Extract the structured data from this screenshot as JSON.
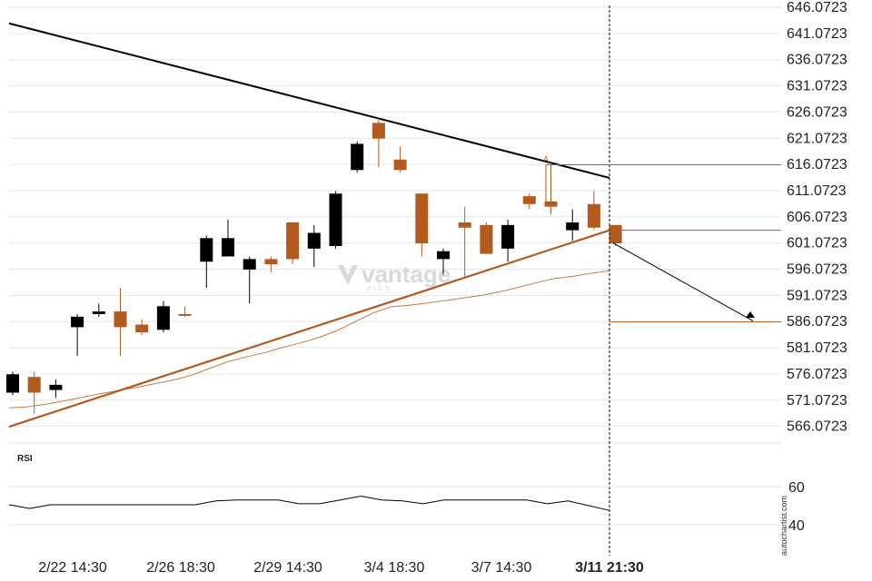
{
  "colors": {
    "bull": "#b35a1f",
    "bear": "#000000",
    "support": "#b35a1f",
    "resistance": "#000000",
    "ma": "#c87a45",
    "grid": "#e6e6e6",
    "hline": "#b35a1f",
    "rsi": "#000000"
  },
  "watermark": {
    "brand": "vantage",
    "sub": "PLUS"
  },
  "credit": "autochartist.com",
  "chart_data": {
    "type": "candlestick",
    "price_axis": {
      "ticks": [
        "646.0723",
        "641.0723",
        "636.0723",
        "631.0723",
        "626.0723",
        "621.0723",
        "616.0723",
        "611.0723",
        "606.0723",
        "601.0723",
        "596.0723",
        "591.0723",
        "586.0723",
        "581.0723",
        "576.0723",
        "571.0723",
        "566.0723"
      ],
      "ylim": [
        563.5,
        646.0723
      ]
    },
    "time_axis": {
      "labels": [
        "2/22 14:30",
        "2/26 18:30",
        "2/29 14:30",
        "3/4 18:30",
        "3/7 14:30",
        "3/11 21:30"
      ],
      "highlight": "3/11 21:30"
    },
    "candles": [
      {
        "o": 576.0,
        "h": 576.5,
        "l": 572.0,
        "c": 572.5
      },
      {
        "o": 572.5,
        "h": 576.5,
        "l": 568.5,
        "c": 575.5
      },
      {
        "o": 574.0,
        "h": 575.0,
        "l": 571.5,
        "c": 573.0
      },
      {
        "o": 587.0,
        "h": 587.5,
        "l": 579.5,
        "c": 585.0
      },
      {
        "o": 588.0,
        "h": 589.5,
        "l": 587.0,
        "c": 587.5
      },
      {
        "o": 585.0,
        "h": 592.5,
        "l": 579.5,
        "c": 588.0
      },
      {
        "o": 584.0,
        "h": 586.5,
        "l": 583.5,
        "c": 585.5
      },
      {
        "o": 589.0,
        "h": 590.0,
        "l": 584.0,
        "c": 584.5
      },
      {
        "o": 587.5,
        "h": 589.0,
        "l": 587.0,
        "c": 587.5
      },
      {
        "o": 602.0,
        "h": 602.5,
        "l": 592.5,
        "c": 597.5
      },
      {
        "o": 602.0,
        "h": 605.5,
        "l": 598.5,
        "c": 598.5
      },
      {
        "o": 598.0,
        "h": 598.5,
        "l": 589.5,
        "c": 596.0
      },
      {
        "o": 597.0,
        "h": 598.5,
        "l": 595.5,
        "c": 598.0
      },
      {
        "o": 598.0,
        "h": 605.0,
        "l": 597.0,
        "c": 605.0
      },
      {
        "o": 603.0,
        "h": 604.5,
        "l": 596.5,
        "c": 600.0
      },
      {
        "o": 610.5,
        "h": 611.0,
        "l": 600.0,
        "c": 600.5
      },
      {
        "o": 620.0,
        "h": 620.5,
        "l": 614.5,
        "c": 615.0
      },
      {
        "o": 621.0,
        "h": 625.0,
        "l": 615.5,
        "c": 624.0
      },
      {
        "o": 615.0,
        "h": 619.5,
        "l": 614.5,
        "c": 617.0
      },
      {
        "o": 601.0,
        "h": 610.5,
        "l": 598.5,
        "c": 610.5
      },
      {
        "o": 599.5,
        "h": 600.0,
        "l": 595.0,
        "c": 598.0
      },
      {
        "o": 604.0,
        "h": 608.0,
        "l": 594.5,
        "c": 605.0
      },
      {
        "o": 599.0,
        "h": 605.0,
        "l": 599.0,
        "c": 604.5
      },
      {
        "o": 604.5,
        "h": 605.5,
        "l": 597.5,
        "c": 600.0
      },
      {
        "o": 608.5,
        "h": 610.5,
        "l": 607.5,
        "c": 610.0
      },
      {
        "o": 608.0,
        "h": 616.0,
        "l": 606.5,
        "c": 609.0
      },
      {
        "o": 605.0,
        "h": 607.5,
        "l": 601.5,
        "c": 603.5
      },
      {
        "o": 604.0,
        "h": 611.0,
        "l": 603.5,
        "c": 608.5
      },
      {
        "o": 601.0,
        "h": 604.5,
        "l": 600.5,
        "c": 604.5
      }
    ],
    "moving_average": [
      569.6,
      569.8,
      570.3,
      570.9,
      571.6,
      572.3,
      572.9,
      573.5,
      574.2,
      574.9,
      575.8,
      577.1,
      578.4,
      579.3,
      580.1,
      581.1,
      582.0,
      583.0,
      584.3,
      586.0,
      587.7,
      588.9,
      589.2,
      589.6,
      590.1,
      590.6,
      591.1,
      591.8,
      592.6,
      593.5,
      594.3,
      594.7,
      595.3,
      595.8
    ],
    "support_line": {
      "from": 566.0,
      "to": 603.5
    },
    "resistance_line": {
      "from": 643.0,
      "to": 613.5
    },
    "levels": {
      "high": 616.0,
      "current": 603.5,
      "target": 586.0
    },
    "annotation": "A",
    "rsi": {
      "label": "RSI",
      "ticks": [
        "60",
        "40"
      ],
      "ylim": [
        26,
        66
      ],
      "values": [
        50.5,
        48.5,
        50.5,
        50.5,
        50.5,
        50.5,
        50.5,
        50.5,
        50.5,
        50.5,
        52.5,
        53,
        53,
        53,
        51,
        51,
        53,
        55,
        53,
        52.5,
        51,
        53,
        53,
        53,
        53,
        53,
        51,
        52.5,
        50,
        47.5
      ]
    }
  }
}
